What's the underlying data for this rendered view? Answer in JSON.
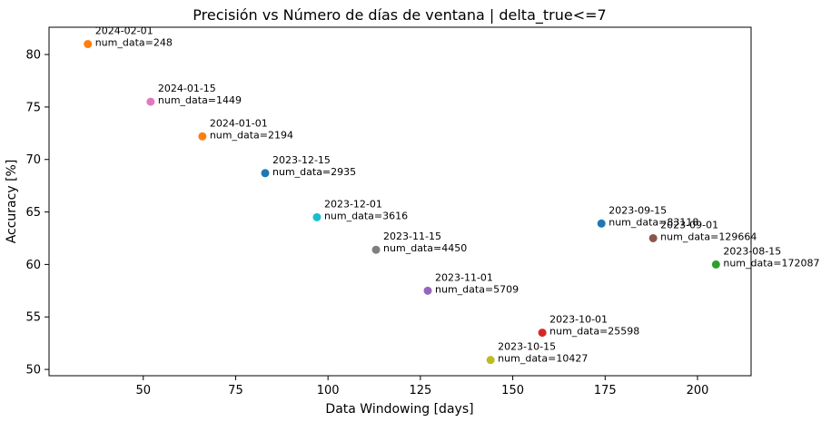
{
  "chart_data": {
    "type": "scatter",
    "title": "Precisión vs Número de días de ventana | delta_true<=7",
    "xlabel": "Data Windowing [days]",
    "ylabel": "Accuracy [%]",
    "xlim": [
      24.5,
      214.5
    ],
    "ylim": [
      49.4,
      82.6
    ],
    "xticks": [
      50,
      75,
      100,
      125,
      150,
      175,
      200
    ],
    "yticks": [
      50,
      55,
      60,
      65,
      70,
      75,
      80
    ],
    "grid": false,
    "points": [
      {
        "date": "2024-02-01",
        "label": "num_data=248",
        "x": 35,
        "y": 81.0,
        "color": "#ff7f0e"
      },
      {
        "date": "2024-01-15",
        "label": "num_data=1449",
        "x": 52,
        "y": 75.5,
        "color": "#e377c2"
      },
      {
        "date": "2024-01-01",
        "label": "num_data=2194",
        "x": 66,
        "y": 72.2,
        "color": "#ff7f0e"
      },
      {
        "date": "2023-12-15",
        "label": "num_data=2935",
        "x": 83,
        "y": 68.7,
        "color": "#1f77b4"
      },
      {
        "date": "2023-12-01",
        "label": "num_data=3616",
        "x": 97,
        "y": 64.5,
        "color": "#17becf"
      },
      {
        "date": "2023-11-15",
        "label": "num_data=4450",
        "x": 113,
        "y": 61.4,
        "color": "#7f7f7f"
      },
      {
        "date": "2023-11-01",
        "label": "num_data=5709",
        "x": 127,
        "y": 57.5,
        "color": "#9467bd"
      },
      {
        "date": "2023-10-15",
        "label": "num_data=10427",
        "x": 144,
        "y": 50.9,
        "color": "#bcbd22"
      },
      {
        "date": "2023-10-01",
        "label": "num_data=25598",
        "x": 158,
        "y": 53.5,
        "color": "#d62728"
      },
      {
        "date": "2023-09-15",
        "label": "num_data=83118",
        "x": 174,
        "y": 63.9,
        "color": "#1f77b4"
      },
      {
        "date": "2023-09-01",
        "label": "num_data=129664",
        "x": 188,
        "y": 62.5,
        "color": "#8c564b"
      },
      {
        "date": "2023-08-15",
        "label": "num_data=172087",
        "x": 205,
        "y": 60.0,
        "color": "#2ca02c"
      }
    ]
  }
}
